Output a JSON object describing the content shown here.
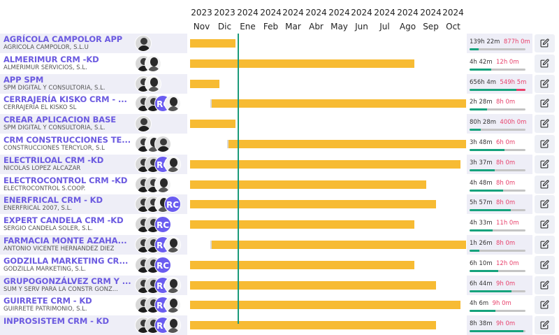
{
  "timeline": {
    "months": [
      {
        "year": "2023",
        "month": "Nov"
      },
      {
        "year": "2023",
        "month": "Dic"
      },
      {
        "year": "2024",
        "month": "Ene"
      },
      {
        "year": "2024",
        "month": "Feb"
      },
      {
        "year": "2024",
        "month": "Mar"
      },
      {
        "year": "2024",
        "month": "Abr"
      },
      {
        "year": "2024",
        "month": "May"
      },
      {
        "year": "2024",
        "month": "Jun"
      },
      {
        "year": "2024",
        "month": "Jul"
      },
      {
        "year": "2024",
        "month": "Ago"
      },
      {
        "year": "2024",
        "month": "Sep"
      },
      {
        "year": "2024",
        "month": "Oct"
      }
    ]
  },
  "colors": {
    "accent": "#6b5ae0",
    "bar": "#f7bb33",
    "today_line": "#1a9a7a",
    "progress": "#16a37d",
    "over": "#e8416b"
  },
  "projects": [
    {
      "name": "AGRÍCOLA CAMPOLOR APP",
      "client": "AGRICOLA CAMPOLOR, S.L.U",
      "avatars": [
        "photo"
      ],
      "bar_start": "2023-11-01",
      "bar_end": "2023-12-31",
      "late": false,
      "spent": "139h 22m",
      "budget": "877h 0m",
      "progress": 0.16,
      "over": 0
    },
    {
      "name": "ALMERIMUR CRM -KD",
      "client": "ALMERIMUR SERVICIOS, S.L.",
      "avatars": [
        "photo",
        "photo2"
      ],
      "bar_start": "2023-11-01",
      "bar_end": "2024-08-25",
      "late": false,
      "spent": "4h 42m",
      "budget": "12h 0m",
      "progress": 0.39,
      "over": 0
    },
    {
      "name": "APP SPM",
      "client": "SPM DIGITAL Y CONSULTORIA, S.L.",
      "avatars": [
        "photo",
        "photo2"
      ],
      "bar_start": "2023-11-01",
      "bar_end": "2023-12-10",
      "late": false,
      "spent": "656h 4m",
      "budget": "549h 5m",
      "progress": 0.84,
      "over": 0.16
    },
    {
      "name": "CERRAJERÍA KISKO CRM - ...",
      "client": "CERRAJERIA EL KISKO SL",
      "avatars": [
        "photo",
        "photo",
        "rc",
        "photo2"
      ],
      "bar_start": "2023-11-28",
      "bar_end": "2024-10-31",
      "late": true,
      "spent": "2h 28m",
      "budget": "8h 0m",
      "progress": 0.31,
      "over": 0
    },
    {
      "name": "CREAR APLICACION BASE",
      "client": "SPM DIGITAL Y CONSULTORIA, S.L.",
      "avatars": [
        "photo"
      ],
      "bar_start": "2023-11-01",
      "bar_end": "2023-12-31",
      "late": false,
      "spent": "80h 28m",
      "budget": "400h 0m",
      "progress": 0.2,
      "over": 0
    },
    {
      "name": "CRM CONSTRUCCIONES TE...",
      "client": "CONSTRUCCIONES TERCYLOR, S.L",
      "avatars": [
        "photo",
        "photo2",
        "photo"
      ],
      "bar_start": "2023-12-20",
      "bar_end": "2024-10-31",
      "late": true,
      "spent": "3h 48m",
      "budget": "6h 0m",
      "progress": 0.63,
      "over": 0
    },
    {
      "name": "ELECTRILOAL CRM -KD",
      "client": "NICOLAS LOPEZ ALCAZAR",
      "avatars": [
        "photo",
        "photo",
        "rc",
        "photo2"
      ],
      "bar_start": "2023-11-01",
      "bar_end": "2024-10-25",
      "late": false,
      "spent": "3h 37m",
      "budget": "8h 0m",
      "progress": 0.45,
      "over": 0
    },
    {
      "name": "ELECTROCONTROL CRM -KD",
      "client": "ELECTROCONTROL S.COOP.",
      "avatars": [
        "photo",
        "photo",
        "photo2"
      ],
      "bar_start": "2023-11-01",
      "bar_end": "2024-09-10",
      "late": false,
      "spent": "4h 48m",
      "budget": "8h 0m",
      "progress": 0.6,
      "over": 0
    },
    {
      "name": "ENERFRICAL CRM - KD",
      "client": "ENERFRICAL 2007, S.L.",
      "avatars": [
        "photo",
        "photo",
        "photo2",
        "rc"
      ],
      "bar_start": "2023-11-01",
      "bar_end": "2024-09-23",
      "late": false,
      "spent": "5h 57m",
      "budget": "8h 0m",
      "progress": 0.74,
      "over": 0
    },
    {
      "name": "EXPERT CANDELA CRM -KD",
      "client": "SERGIO CANDELA SOLER, S.L.",
      "avatars": [
        "photo",
        "photo",
        "rc"
      ],
      "bar_start": "2023-11-01",
      "bar_end": "2024-08-25",
      "late": false,
      "spent": "4h 33m",
      "budget": "11h 0m",
      "progress": 0.41,
      "over": 0
    },
    {
      "name": "FARMACIA MONTE AZAHA...",
      "client": "ANTONIO VICENTE HERNANDEZ DIEZ",
      "avatars": [
        "photo",
        "photo",
        "rc",
        "photo2"
      ],
      "bar_start": "2023-11-28",
      "bar_end": "2024-10-31",
      "late": true,
      "spent": "1h 26m",
      "budget": "8h 0m",
      "progress": 0.18,
      "over": 0
    },
    {
      "name": "GODZILLA MARKETING CR...",
      "client": "GODZILLA MARKETING, S.L.",
      "avatars": [
        "photo",
        "photo",
        "rc"
      ],
      "bar_start": "2023-11-01",
      "bar_end": "2024-08-25",
      "late": false,
      "spent": "6h 10m",
      "budget": "12h 0m",
      "progress": 0.51,
      "over": 0
    },
    {
      "name": "GRUPOGONZÁLVEZ CRM Y ...",
      "client": "SUM Y SERV PARA LA CONSTR GONZ...",
      "avatars": [
        "photo",
        "photo",
        "rc",
        "photo2"
      ],
      "bar_start": "2023-11-01",
      "bar_end": "2024-09-23",
      "late": false,
      "spent": "6h 44m",
      "budget": "9h 0m",
      "progress": 0.75,
      "over": 0
    },
    {
      "name": "GUIRRETE CRM - KD",
      "client": "GUIRRETE PATRIMONIO, S.L.",
      "avatars": [
        "photo",
        "photo",
        "rc",
        "photo2"
      ],
      "bar_start": "2023-11-01",
      "bar_end": "2024-10-25",
      "late": false,
      "spent": "4h 6m",
      "budget": "9h 0m",
      "progress": 0.46,
      "over": 0
    },
    {
      "name": "INPROSISTEM CRM - KD",
      "client": "",
      "avatars": [
        "photo",
        "photo",
        "rc",
        "photo2"
      ],
      "bar_start": "2023-11-01",
      "bar_end": "2024-09-23",
      "late": false,
      "spent": "8h 38m",
      "budget": "9h 0m",
      "progress": 0.96,
      "over": 0
    }
  ]
}
